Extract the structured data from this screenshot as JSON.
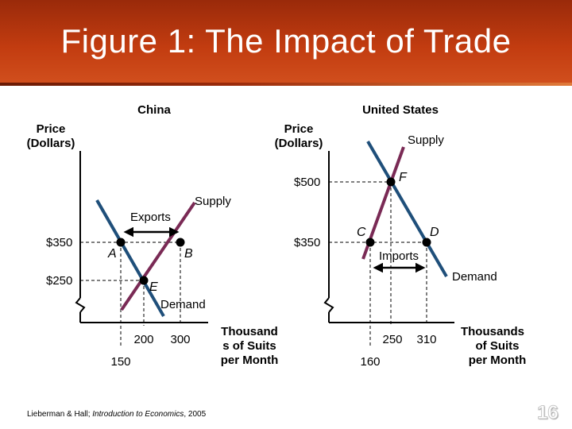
{
  "title": "Figure 1:  The Impact of Trade",
  "china": {
    "heading": "China",
    "y_axis_label_line1": "Price",
    "y_axis_label_line2": "(Dollars)",
    "price_high": "$350",
    "price_low": "$250",
    "supply_label": "Supply",
    "demand_label": "Demand",
    "exports_label": "Exports",
    "point_a": "A",
    "point_b": "B",
    "point_e": "E",
    "x_ticks": [
      "200",
      "300",
      "150"
    ],
    "x_axis_label_line1": "Thousand",
    "x_axis_label_line2": "s of Suits",
    "x_axis_label_line3": "per Month"
  },
  "us": {
    "heading": "United States",
    "y_axis_label_line1": "Price",
    "y_axis_label_line2": "(Dollars)",
    "price_high": "$500",
    "price_mid": "$350",
    "supply_label": "Supply",
    "demand_label": "Demand",
    "imports_label": "Imports",
    "point_c": "C",
    "point_d": "D",
    "point_f": "F",
    "x_ticks": [
      "250",
      "310",
      "160"
    ],
    "x_axis_label_line1": "Thousands",
    "x_axis_label_line2": "of Suits",
    "x_axis_label_line3": "per Month"
  },
  "colors": {
    "title_bar": "#c23c10",
    "supply_line": "#7a2a55",
    "demand_line": "#1f4f7a",
    "axes": "#000000"
  },
  "footer": {
    "authors": "Lieberman & Hall; ",
    "book": "Introduction to Economics",
    "year": ", 2005"
  },
  "page_number": "16"
}
